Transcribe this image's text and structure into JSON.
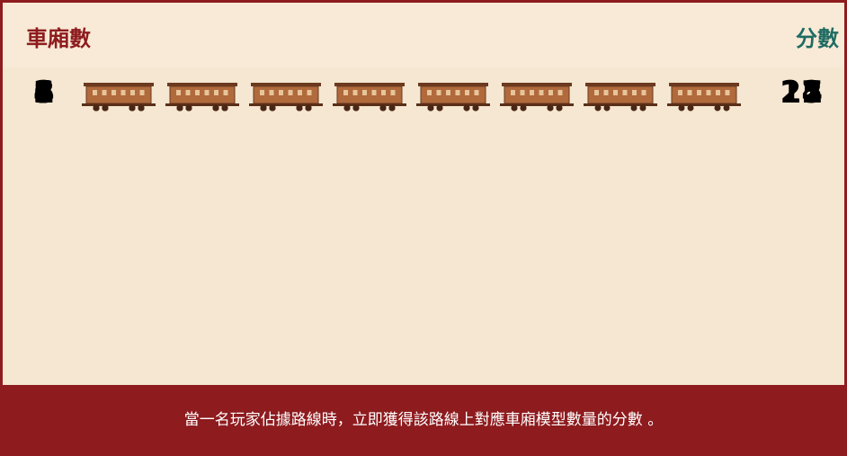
{
  "header": {
    "count_label": "車廂數",
    "score_label": "分數"
  },
  "rows": [
    {
      "cars": 1,
      "score": 1
    },
    {
      "cars": 2,
      "score": 2
    },
    {
      "cars": 3,
      "score": 4
    },
    {
      "cars": 4,
      "score": 7
    },
    {
      "cars": 6,
      "score": 15
    },
    {
      "cars": 8,
      "score": 21
    }
  ],
  "footer": "當一名玩家佔據路線時，立即獲得該路線上對應車廂模型數量的分數 。"
}
